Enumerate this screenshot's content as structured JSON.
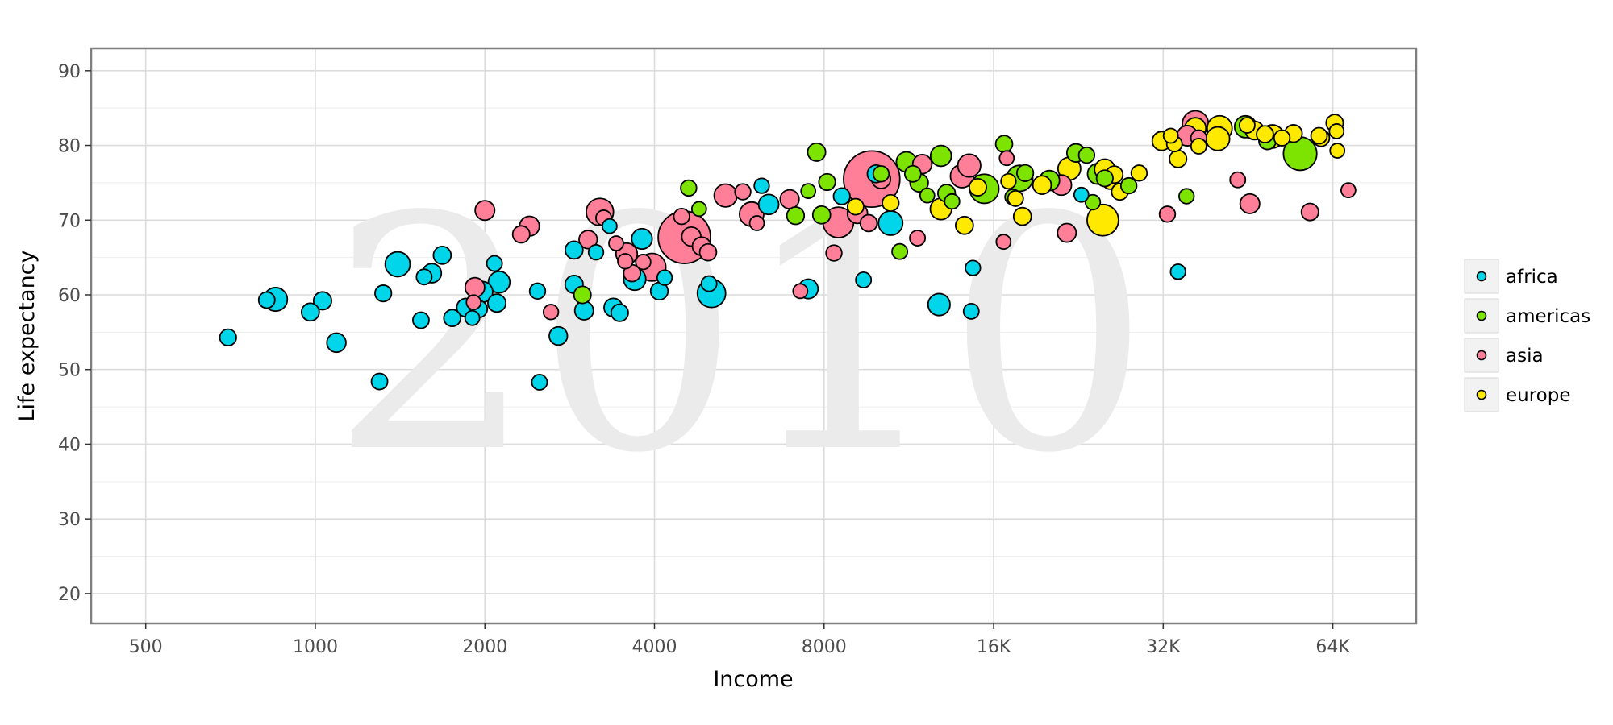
{
  "chart_data": {
    "type": "scatter",
    "watermark": "2010",
    "xlabel": "Income",
    "ylabel": "Life expectancy",
    "xscale": "log2",
    "xlim": [
      400,
      90000
    ],
    "ylim": [
      16,
      93
    ],
    "xticks": [
      {
        "value": 500,
        "label": "500"
      },
      {
        "value": 1000,
        "label": "1000"
      },
      {
        "value": 2000,
        "label": "2000"
      },
      {
        "value": 4000,
        "label": "4000"
      },
      {
        "value": 8000,
        "label": "8000"
      },
      {
        "value": 16000,
        "label": "16K"
      },
      {
        "value": 32000,
        "label": "32K"
      },
      {
        "value": 64000,
        "label": "64K"
      }
    ],
    "yticks": [
      {
        "value": 20,
        "label": "20"
      },
      {
        "value": 30,
        "label": "30"
      },
      {
        "value": 40,
        "label": "40"
      },
      {
        "value": 50,
        "label": "50"
      },
      {
        "value": 60,
        "label": "60"
      },
      {
        "value": 70,
        "label": "70"
      },
      {
        "value": 80,
        "label": "80"
      },
      {
        "value": 90,
        "label": "90"
      }
    ],
    "grid": true,
    "legend_position": "right",
    "size_field": "population",
    "series": [
      {
        "name": "africa",
        "color": "#00d5e9",
        "points": [
          [
            700,
            54.3,
            0.8
          ],
          [
            850,
            59.4,
            4.5
          ],
          [
            820,
            59.3,
            0.7
          ],
          [
            980,
            57.7,
            1.2
          ],
          [
            1030,
            59.2,
            1.3
          ],
          [
            1090,
            53.6,
            1.8
          ],
          [
            1300,
            48.4,
            0.7
          ],
          [
            1320,
            60.2,
            0.8
          ],
          [
            1400,
            64.1,
            5.5
          ],
          [
            1540,
            56.6,
            0.7
          ],
          [
            1560,
            62.4,
            0.5
          ],
          [
            1610,
            62.9,
            1.8
          ],
          [
            1680,
            65.3,
            1.2
          ],
          [
            1750,
            56.9,
            0.9
          ],
          [
            1850,
            58.3,
            1.4
          ],
          [
            1900,
            56.9,
            0.3
          ],
          [
            1950,
            58.1,
            1.0
          ],
          [
            1980,
            60.4,
            2.6
          ],
          [
            2080,
            64.2,
            0.5
          ],
          [
            2100,
            58.9,
            1.3
          ],
          [
            2120,
            61.7,
            3.1
          ],
          [
            2480,
            60.5,
            0.6
          ],
          [
            2500,
            48.3,
            0.5
          ],
          [
            2700,
            54.5,
            1.4
          ],
          [
            2880,
            66.0,
            1.2
          ],
          [
            2880,
            61.4,
            1.3
          ],
          [
            3000,
            57.9,
            1.6
          ],
          [
            3150,
            65.7,
            0.4
          ],
          [
            3330,
            69.2,
            0.3
          ],
          [
            3380,
            58.3,
            1.5
          ],
          [
            3470,
            57.6,
            1.0
          ],
          [
            3690,
            62.1,
            3.5
          ],
          [
            3800,
            67.5,
            2.5
          ],
          [
            4080,
            60.5,
            1.1
          ],
          [
            4170,
            62.3,
            0.4
          ],
          [
            5000,
            61.5,
            0.5
          ],
          [
            5050,
            60.2,
            8.5
          ],
          [
            6200,
            74.6,
            0.4
          ],
          [
            6380,
            72.1,
            2.3
          ],
          [
            7500,
            60.8,
            2.0
          ],
          [
            8600,
            73.2,
            0.8
          ],
          [
            9400,
            62.0,
            0.5
          ],
          [
            9900,
            76.2,
            1.2
          ],
          [
            10500,
            69.6,
            5.0
          ],
          [
            12800,
            58.7,
            3.4
          ],
          [
            14600,
            57.8,
            0.5
          ],
          [
            14700,
            63.6,
            0.4
          ],
          [
            22900,
            73.4,
            0.3
          ],
          [
            34000,
            63.1,
            0.4
          ]
        ]
      },
      {
        "name": "americas",
        "color": "#7ce400",
        "points": [
          [
            2980,
            60.0,
            1.0
          ],
          [
            4600,
            74.3,
            0.6
          ],
          [
            4800,
            71.5,
            0.3
          ],
          [
            7120,
            70.6,
            1.1
          ],
          [
            7500,
            73.9,
            0.3
          ],
          [
            7760,
            79.1,
            1.3
          ],
          [
            7920,
            70.7,
            1.2
          ],
          [
            8100,
            75.1,
            0.8
          ],
          [
            10100,
            76.2,
            0.6
          ],
          [
            10900,
            65.8,
            0.5
          ],
          [
            11200,
            77.8,
            2.3
          ],
          [
            11500,
            76.2,
            0.7
          ],
          [
            11800,
            75.0,
            1.4
          ],
          [
            12200,
            73.3,
            0.3
          ],
          [
            12900,
            78.6,
            2.7
          ],
          [
            13200,
            73.6,
            1.1
          ],
          [
            13500,
            72.5,
            0.4
          ],
          [
            15400,
            74.2,
            9.5
          ],
          [
            16700,
            80.2,
            0.9
          ],
          [
            17300,
            73.1,
            0.5
          ],
          [
            17800,
            75.6,
            6.5
          ],
          [
            18200,
            76.3,
            0.8
          ],
          [
            20100,
            75.3,
            2.3
          ],
          [
            22400,
            79.0,
            1.4
          ],
          [
            23400,
            78.7,
            0.6
          ],
          [
            24000,
            72.4,
            0.4
          ],
          [
            24500,
            76.2,
            2.6
          ],
          [
            25200,
            75.6,
            0.8
          ],
          [
            27800,
            74.6,
            0.6
          ],
          [
            35200,
            73.2,
            0.4
          ],
          [
            44800,
            82.5,
            3.3
          ],
          [
            49000,
            80.6,
            1.0
          ],
          [
            56000,
            78.9,
            14.5
          ]
        ]
      },
      {
        "name": "asia",
        "color": "#ff7f99",
        "points": [
          [
            1920,
            61.0,
            2.0
          ],
          [
            1910,
            59.0,
            0.3
          ],
          [
            2000,
            71.3,
            2.0
          ],
          [
            2320,
            68.1,
            1.0
          ],
          [
            2400,
            69.2,
            2.1
          ],
          [
            2620,
            57.7,
            0.4
          ],
          [
            3050,
            67.4,
            1.4
          ],
          [
            3200,
            71.1,
            7.5
          ],
          [
            3250,
            70.3,
            0.5
          ],
          [
            3420,
            66.9,
            0.3
          ],
          [
            3550,
            64.5,
            0.4
          ],
          [
            3570,
            65.5,
            3.0
          ],
          [
            3650,
            62.9,
            0.9
          ],
          [
            3820,
            64.4,
            0.4
          ],
          [
            3960,
            63.7,
            8.0
          ],
          [
            4520,
            67.7,
            50.0
          ],
          [
            4470,
            70.5,
            0.6
          ],
          [
            4650,
            67.8,
            1.8
          ],
          [
            4850,
            66.5,
            1.5
          ],
          [
            4980,
            65.7,
            0.9
          ],
          [
            5350,
            73.3,
            4.0
          ],
          [
            5740,
            73.8,
            0.6
          ],
          [
            5950,
            70.8,
            5.0
          ],
          [
            6080,
            69.6,
            0.3
          ],
          [
            6950,
            72.8,
            1.7
          ],
          [
            7260,
            60.5,
            0.3
          ],
          [
            8330,
            65.6,
            0.6
          ],
          [
            8480,
            69.7,
            11.0
          ],
          [
            9170,
            70.9,
            2.3
          ],
          [
            9720,
            75.5,
            60.0
          ],
          [
            9600,
            69.6,
            0.9
          ],
          [
            10100,
            75.5,
            1.7
          ],
          [
            11720,
            67.6,
            0.5
          ],
          [
            11950,
            77.5,
            1.8
          ],
          [
            14060,
            75.9,
            4.2
          ],
          [
            14480,
            77.3,
            4.0
          ],
          [
            16660,
            67.1,
            0.3
          ],
          [
            16880,
            78.3,
            0.3
          ],
          [
            21100,
            74.7,
            2.4
          ],
          [
            21580,
            68.3,
            1.6
          ],
          [
            32550,
            70.8,
            0.6
          ],
          [
            35300,
            81.3,
            2.4
          ],
          [
            36500,
            82.9,
            6.5
          ],
          [
            37000,
            81.0,
            0.6
          ],
          [
            43400,
            75.4,
            0.5
          ],
          [
            45600,
            72.2,
            2.0
          ],
          [
            58300,
            71.1,
            1.0
          ],
          [
            68200,
            74.0,
            0.3
          ]
        ]
      },
      {
        "name": "europe",
        "color": "#ffe900",
        "points": [
          [
            9100,
            71.8,
            0.7
          ],
          [
            10500,
            72.3,
            0.8
          ],
          [
            12900,
            71.5,
            3.0
          ],
          [
            14200,
            69.3,
            1.2
          ],
          [
            15000,
            74.4,
            1.0
          ],
          [
            17000,
            75.2,
            0.4
          ],
          [
            17500,
            72.9,
            0.5
          ],
          [
            18000,
            70.5,
            1.2
          ],
          [
            19500,
            74.7,
            1.5
          ],
          [
            21800,
            76.9,
            3.8
          ],
          [
            25000,
            70.0,
            12.0
          ],
          [
            25200,
            76.8,
            2.5
          ],
          [
            25800,
            75.3,
            1.1
          ],
          [
            26200,
            76.1,
            1.0
          ],
          [
            26800,
            73.8,
            0.8
          ],
          [
            29000,
            76.3,
            0.6
          ],
          [
            31800,
            80.6,
            1.7
          ],
          [
            33000,
            81.3,
            0.3
          ],
          [
            33500,
            80.2,
            0.5
          ],
          [
            34000,
            78.2,
            1.0
          ],
          [
            36500,
            82.3,
            2.8
          ],
          [
            37000,
            79.9,
            0.5
          ],
          [
            40000,
            80.9,
            4.5
          ],
          [
            40300,
            82.3,
            5.5
          ],
          [
            45100,
            82.7,
            0.5
          ],
          [
            46500,
            82.0,
            1.5
          ],
          [
            48500,
            81.5,
            0.9
          ],
          [
            50000,
            81.2,
            4.2
          ],
          [
            52000,
            81.0,
            0.6
          ],
          [
            54500,
            81.6,
            1.1
          ],
          [
            60500,
            81.3,
            0.7
          ],
          [
            61000,
            81.0,
            0.9
          ],
          [
            64500,
            83.0,
            1.0
          ],
          [
            65000,
            81.9,
            0.3
          ],
          [
            65200,
            79.3,
            0.3
          ]
        ]
      }
    ]
  }
}
